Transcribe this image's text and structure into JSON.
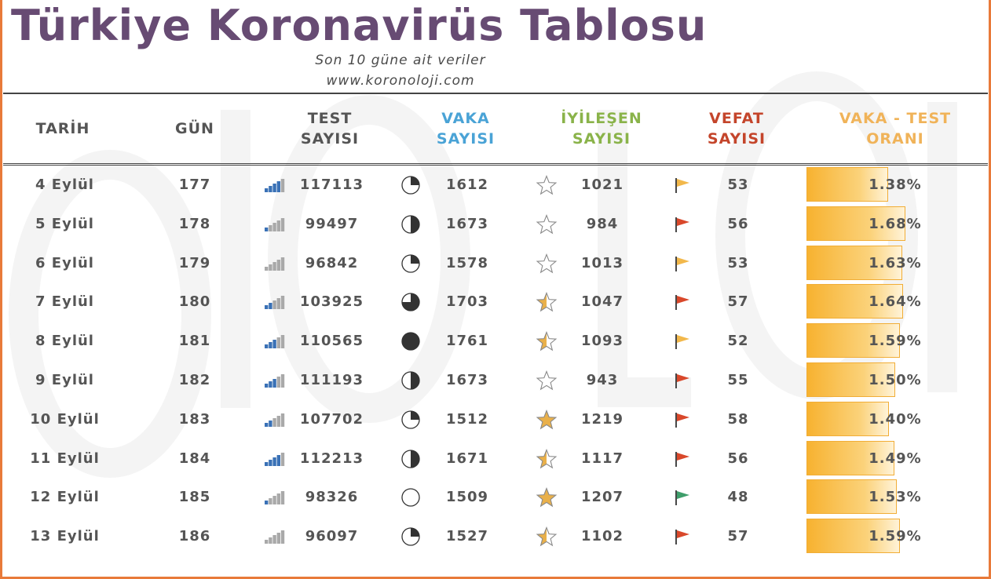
{
  "title": "Türkiye Koronavirüs Tablosu",
  "subtitle": "Son 10 güne ait veriler",
  "website": "www.koronoloji.com",
  "headers": {
    "tarih": "TARİH",
    "gun": "GÜN",
    "test_1": "TEST",
    "test_2": "SAYISI",
    "vaka_1": "VAKA",
    "vaka_2": "SAYISI",
    "iyilesen_1": "İYİLEŞEN",
    "iyilesen_2": "SAYISI",
    "vefat_1": "VEFAT",
    "vefat_2": "SAYISI",
    "oran_1": "VAKA - TEST",
    "oran_2": "ORANI"
  },
  "colors": {
    "title": "#674b73",
    "vaka_header": "#4aa3d6",
    "iyilesen_header": "#8ab34a",
    "vefat_header": "#c4452b",
    "oran_header": "#f0b359",
    "bar": "#f7b230",
    "frame": "#e87a3a"
  },
  "rows": [
    {
      "tarih": "4 Eylül",
      "gun": "177",
      "test": "117113",
      "test_level": 4,
      "vaka": "1612",
      "vaka_fill": 0.25,
      "iyilesen": "1021",
      "star_fill": 0,
      "vefat": "53",
      "flag": "yellow",
      "oran": "1.38%",
      "oran_value": 1.38
    },
    {
      "tarih": "5 Eylül",
      "gun": "178",
      "test": "99497",
      "test_level": 1,
      "vaka": "1673",
      "vaka_fill": 0.5,
      "iyilesen": "984",
      "star_fill": 0,
      "vefat": "56",
      "flag": "red",
      "oran": "1.68%",
      "oran_value": 1.68
    },
    {
      "tarih": "6 Eylül",
      "gun": "179",
      "test": "96842",
      "test_level": 0,
      "vaka": "1578",
      "vaka_fill": 0.25,
      "iyilesen": "1013",
      "star_fill": 0,
      "vefat": "53",
      "flag": "yellow",
      "oran": "1.63%",
      "oran_value": 1.63
    },
    {
      "tarih": "7 Eylül",
      "gun": "180",
      "test": "103925",
      "test_level": 2,
      "vaka": "1703",
      "vaka_fill": 0.75,
      "iyilesen": "1047",
      "star_fill": 0.5,
      "vefat": "57",
      "flag": "red",
      "oran": "1.64%",
      "oran_value": 1.64
    },
    {
      "tarih": "8 Eylül",
      "gun": "181",
      "test": "110565",
      "test_level": 3,
      "vaka": "1761",
      "vaka_fill": 1,
      "iyilesen": "1093",
      "star_fill": 0.5,
      "vefat": "52",
      "flag": "yellow",
      "oran": "1.59%",
      "oran_value": 1.59
    },
    {
      "tarih": "9 Eylül",
      "gun": "182",
      "test": "111193",
      "test_level": 3,
      "vaka": "1673",
      "vaka_fill": 0.5,
      "iyilesen": "943",
      "star_fill": 0,
      "vefat": "55",
      "flag": "red",
      "oran": "1.50%",
      "oran_value": 1.5
    },
    {
      "tarih": "10 Eylül",
      "gun": "183",
      "test": "107702",
      "test_level": 2,
      "vaka": "1512",
      "vaka_fill": 0.25,
      "iyilesen": "1219",
      "star_fill": 1,
      "vefat": "58",
      "flag": "red",
      "oran": "1.40%",
      "oran_value": 1.4
    },
    {
      "tarih": "11 Eylül",
      "gun": "184",
      "test": "112213",
      "test_level": 4,
      "vaka": "1671",
      "vaka_fill": 0.5,
      "iyilesen": "1117",
      "star_fill": 0.5,
      "vefat": "56",
      "flag": "red",
      "oran": "1.49%",
      "oran_value": 1.49
    },
    {
      "tarih": "12 Eylül",
      "gun": "185",
      "test": "98326",
      "test_level": 1,
      "vaka": "1509",
      "vaka_fill": 0,
      "iyilesen": "1207",
      "star_fill": 1,
      "vefat": "48",
      "flag": "green",
      "oran": "1.53%",
      "oran_value": 1.53
    },
    {
      "tarih": "13 Eylül",
      "gun": "186",
      "test": "96097",
      "test_level": 0,
      "vaka": "1527",
      "vaka_fill": 0.25,
      "iyilesen": "1102",
      "star_fill": 0.5,
      "vefat": "57",
      "flag": "red",
      "oran": "1.59%",
      "oran_value": 1.59
    }
  ]
}
